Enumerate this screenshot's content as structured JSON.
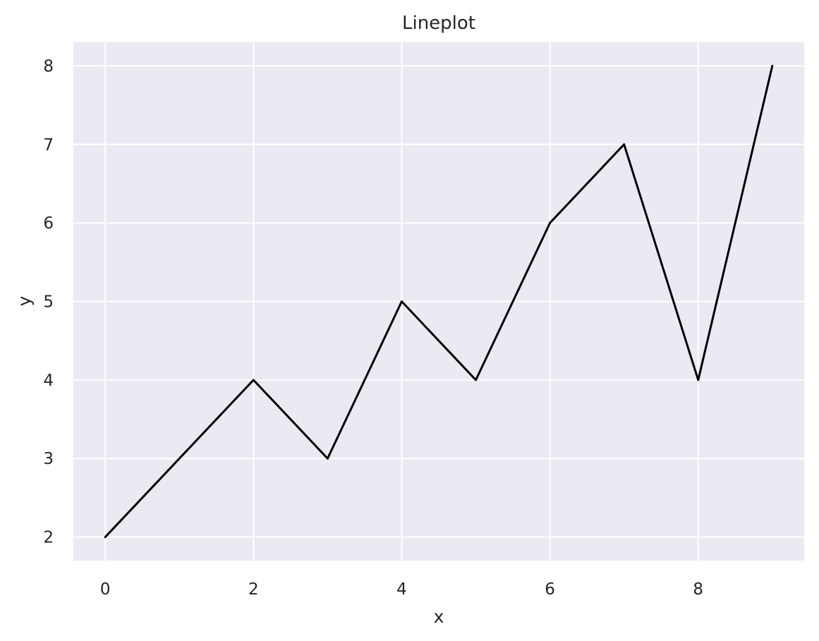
{
  "chart_data": {
    "type": "line",
    "title": "Lineplot",
    "xlabel": "x",
    "ylabel": "y",
    "x": [
      0,
      1,
      2,
      3,
      4,
      5,
      6,
      7,
      8,
      9
    ],
    "series": [
      {
        "values": [
          2,
          3,
          4,
          3,
          5,
          4,
          6,
          7,
          4,
          8
        ],
        "color": "#000000"
      }
    ],
    "xlim": [
      -0.43,
      9.43
    ],
    "ylim": [
      1.7,
      8.3
    ],
    "xticks": [
      0,
      2,
      4,
      6,
      8
    ],
    "yticks": [
      2,
      3,
      4,
      5,
      6,
      7,
      8
    ],
    "grid": true,
    "background_color": "#eaeaf2",
    "grid_color": "#ffffff"
  }
}
